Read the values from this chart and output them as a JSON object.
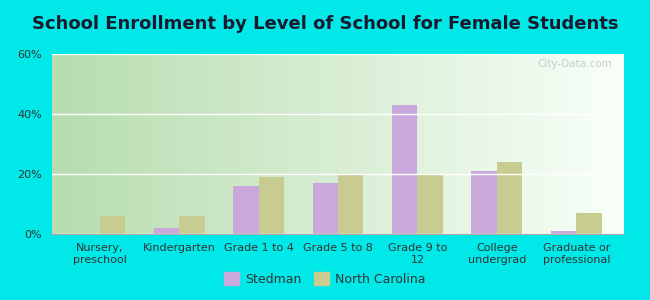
{
  "title": "School Enrollment by Level of School for Female Students",
  "categories": [
    "Nursery,\npreschool",
    "Kindergarten",
    "Grade 1 to 4",
    "Grade 5 to 8",
    "Grade 9 to\n12",
    "College\nundergrad",
    "Graduate or\nprofessional"
  ],
  "stedman": [
    0,
    2,
    16,
    17,
    43,
    21,
    1
  ],
  "north_carolina": [
    6,
    6,
    19,
    20,
    20,
    24,
    7
  ],
  "stedman_color": "#c9a8dc",
  "nc_color": "#c8cc90",
  "bg_color": "#00e8e8",
  "plot_bg_left": "#b8ddb0",
  "plot_bg_right": "#f8fff8",
  "ylim": [
    0,
    60
  ],
  "yticks": [
    0,
    20,
    40,
    60
  ],
  "ytick_labels": [
    "0%",
    "20%",
    "40%",
    "60%"
  ],
  "title_fontsize": 13,
  "tick_fontsize": 8,
  "legend_stedman": "Stedman",
  "legend_nc": "North Carolina",
  "bar_width": 0.32
}
